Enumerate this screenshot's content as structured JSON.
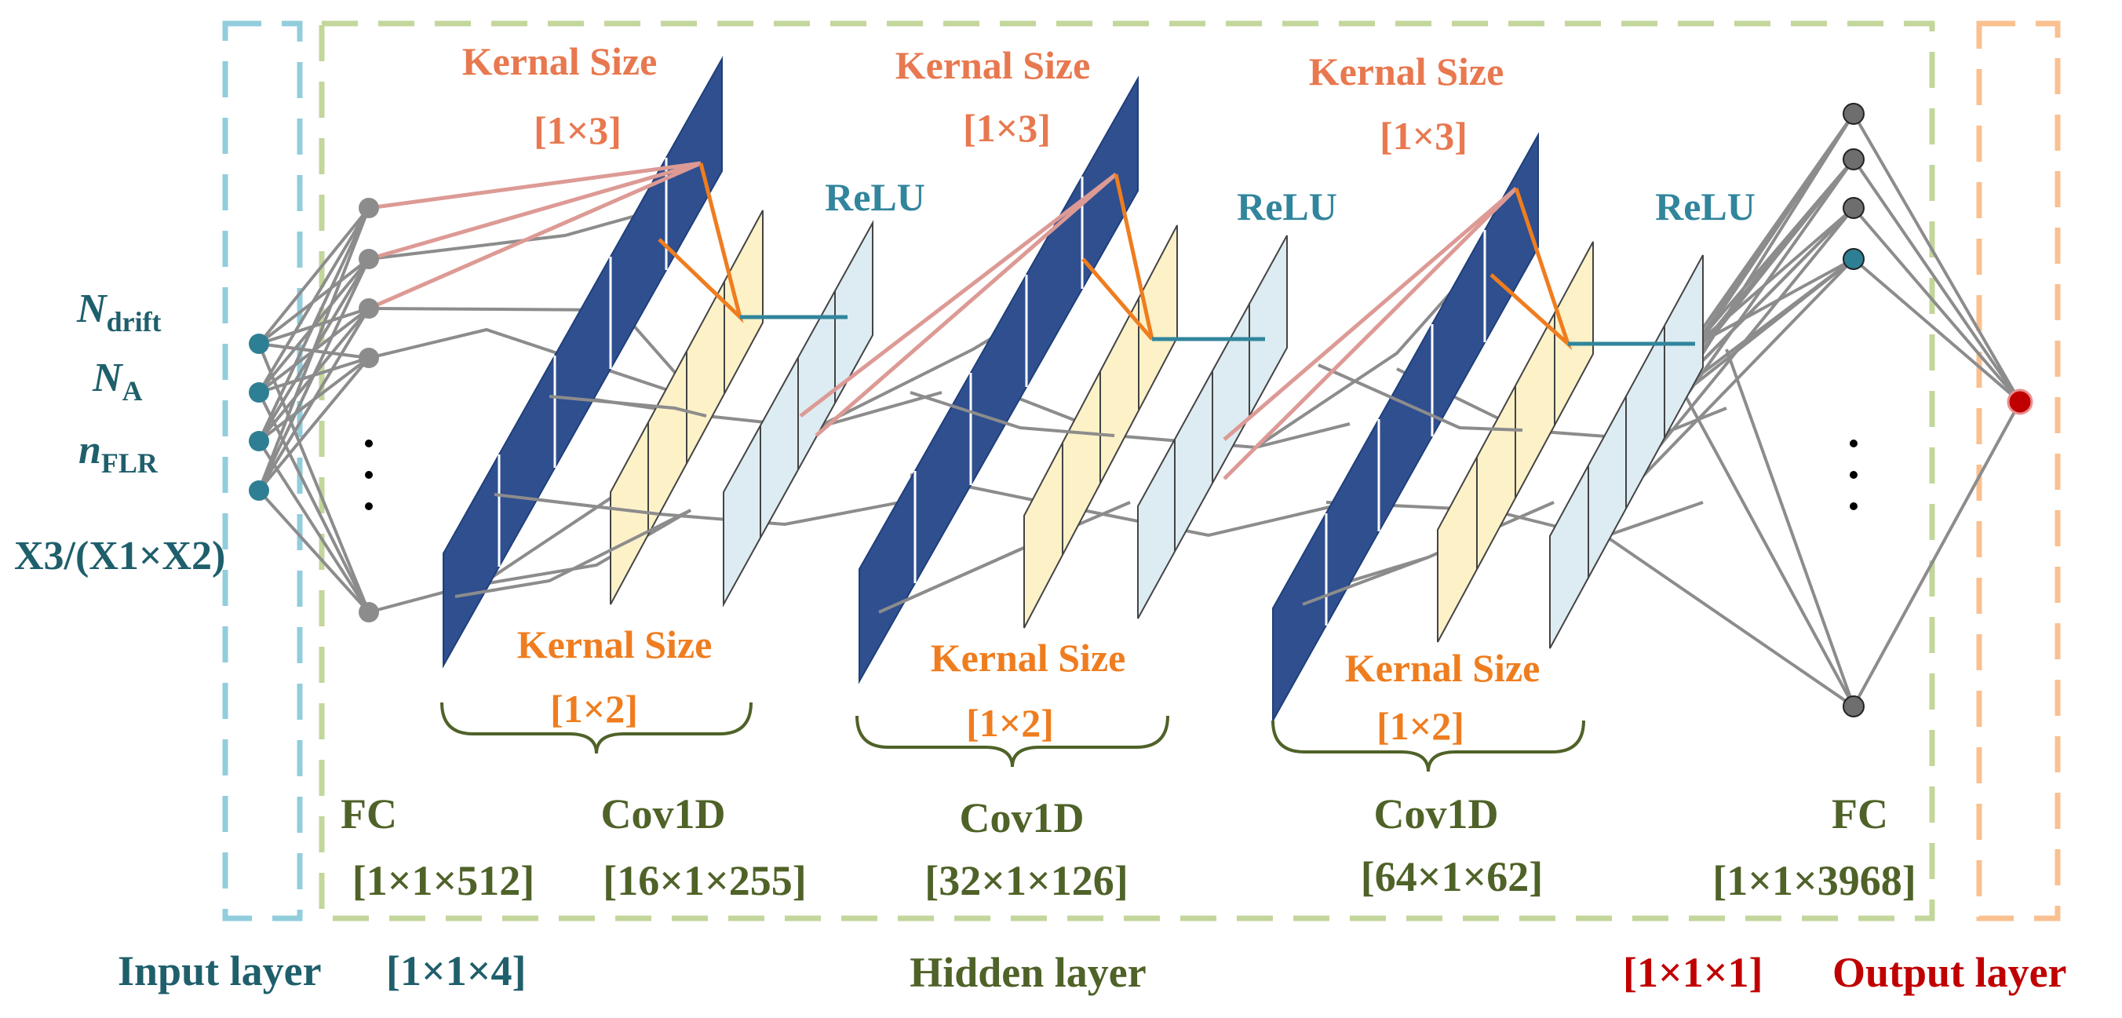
{
  "inputs": {
    "n_drift": {
      "var": "N",
      "sub": "drift"
    },
    "n_a": {
      "var": "N",
      "sub": "A"
    },
    "n_flr": {
      "var": "n",
      "sub": "FLR"
    },
    "ratio": "X3/(X1×X2)"
  },
  "kernel_label": "Kernal Size",
  "conv_blocks": [
    {
      "name": "Cov1D",
      "dims": "[16×1×255]",
      "kernel_top": "[1×3]",
      "kernel_bottom": "[1×2]",
      "activation": "ReLU"
    },
    {
      "name": "Cov1D",
      "dims": "[32×1×126]",
      "kernel_top": "[1×3]",
      "kernel_bottom": "[1×2]",
      "activation": "ReLU"
    },
    {
      "name": "Cov1D",
      "dims": "[64×1×62]",
      "kernel_top": "[1×3]",
      "kernel_bottom": "[1×2]",
      "activation": "ReLU"
    }
  ],
  "fc_first": {
    "name": "FC",
    "dims": "[1×1×512]"
  },
  "fc_last": {
    "name": "FC",
    "dims": "[1×1×3968]"
  },
  "footer": {
    "input_layer": "Input layer",
    "input_dims": "[1×1×4]",
    "hidden_layer": "Hidden layer",
    "output_dims": "[1×1×1]",
    "output_layer": "Output layer"
  },
  "colors": {
    "teal": "#1f5f6b",
    "node_teal": "#2f7f94",
    "orange": "#ef7d1f",
    "salmon": "#e8784f",
    "olive": "#4f6228",
    "red": "#c00000",
    "navy": "#2f4f8f",
    "yellow": "#fdf1c8",
    "lightblue": "#dcecf2",
    "input_box": "#92cddc",
    "hidden_box": "#c3d69b",
    "output_box": "#fac090",
    "gray_line": "#8c8c8c",
    "pink_line": "#dd9a95",
    "relu_line": "#31859c"
  }
}
